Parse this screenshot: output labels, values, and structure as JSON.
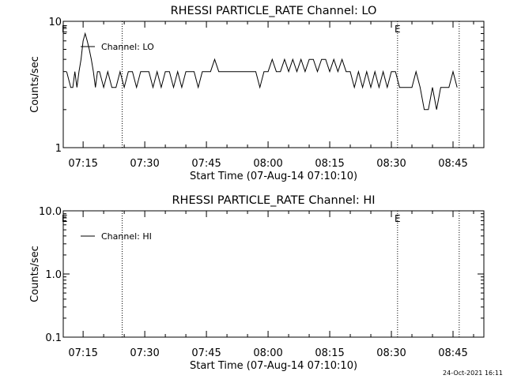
{
  "footer": {
    "timestamp": "24-Oct-2021 16:11"
  },
  "chart_data": [
    {
      "type": "line",
      "title": "RHESSI PARTICLE_RATE Channel: LO",
      "xlabel": "Start Time (07-Aug-14 07:10:10)",
      "ylabel": "Counts/sec",
      "y_scale": "log",
      "xlim": [
        "07:10:10",
        "08:52:30"
      ],
      "ylim": [
        1,
        10
      ],
      "x_ticks": [
        "07:15",
        "07:30",
        "07:45",
        "08:00",
        "08:15",
        "08:30",
        "08:45"
      ],
      "y_ticks": [
        "1",
        "10"
      ],
      "legend": "top-left",
      "markers": [
        {
          "time": "07:10:30",
          "label": "E"
        },
        {
          "time": "08:31:30",
          "label": "E"
        }
      ],
      "dotted_lines": [
        "07:24:30",
        "08:31:30",
        "08:46:30"
      ],
      "series": [
        {
          "name": "Channel: LO",
          "x": [
            "07:11:00",
            "07:12:00",
            "07:12:30",
            "07:13:00",
            "07:13:30",
            "07:14:00",
            "07:14:30",
            "07:15:00",
            "07:15:30",
            "07:16:00",
            "07:16:30",
            "07:17:00",
            "07:17:30",
            "07:18:00",
            "07:18:30",
            "07:19:00",
            "07:20:00",
            "07:21:00",
            "07:22:00",
            "07:23:00",
            "07:24:00",
            "07:25:00",
            "07:26:00",
            "07:27:00",
            "07:28:00",
            "07:29:00",
            "07:30:00",
            "07:31:00",
            "07:32:00",
            "07:33:00",
            "07:34:00",
            "07:35:00",
            "07:36:00",
            "07:37:00",
            "07:38:00",
            "07:39:00",
            "07:40:00",
            "07:41:00",
            "07:42:00",
            "07:43:00",
            "07:44:00",
            "07:45:00",
            "07:46:00",
            "07:47:00",
            "07:48:00",
            "07:49:00",
            "07:50:00",
            "07:51:00",
            "07:52:00",
            "07:53:00",
            "07:54:00",
            "07:55:00",
            "07:56:00",
            "07:57:00",
            "07:58:00",
            "07:59:00",
            "08:00:00",
            "08:01:00",
            "08:02:00",
            "08:03:00",
            "08:04:00",
            "08:05:00",
            "08:06:00",
            "08:07:00",
            "08:08:00",
            "08:09:00",
            "08:10:00",
            "08:11:00",
            "08:12:00",
            "08:13:00",
            "08:14:00",
            "08:15:00",
            "08:16:00",
            "08:17:00",
            "08:18:00",
            "08:19:00",
            "08:20:00",
            "08:21:00",
            "08:22:00",
            "08:23:00",
            "08:24:00",
            "08:25:00",
            "08:26:00",
            "08:27:00",
            "08:28:00",
            "08:29:00",
            "08:30:00",
            "08:31:00",
            "08:32:00",
            "08:33:00",
            "08:34:00",
            "08:35:00",
            "08:36:00",
            "08:37:00",
            "08:38:00",
            "08:39:00",
            "08:40:00",
            "08:41:00",
            "08:42:00",
            "08:43:00",
            "08:44:00",
            "08:45:00",
            "08:46:00"
          ],
          "values": [
            4,
            3,
            3,
            4,
            3,
            4,
            5,
            7,
            8,
            7,
            6,
            5,
            4,
            3,
            4,
            4,
            3,
            4,
            3,
            3,
            4,
            3,
            4,
            4,
            3,
            4,
            4,
            4,
            3,
            4,
            3,
            4,
            4,
            3,
            4,
            3,
            4,
            4,
            4,
            3,
            4,
            4,
            4,
            5,
            4,
            4,
            4,
            4,
            4,
            4,
            4,
            4,
            4,
            4,
            3,
            4,
            4,
            5,
            4,
            4,
            5,
            4,
            5,
            4,
            5,
            4,
            5,
            5,
            4,
            5,
            5,
            4,
            5,
            4,
            5,
            4,
            4,
            3,
            4,
            3,
            4,
            3,
            4,
            3,
            4,
            3,
            4,
            4,
            3,
            3,
            3,
            3,
            4,
            3,
            2,
            2,
            3,
            2,
            3,
            3,
            3,
            4,
            3
          ]
        }
      ]
    },
    {
      "type": "line",
      "title": "RHESSI PARTICLE_RATE Channel: HI",
      "xlabel": "Start Time (07-Aug-14 07:10:10)",
      "ylabel": "Counts/sec",
      "y_scale": "log",
      "xlim": [
        "07:10:10",
        "08:52:30"
      ],
      "ylim": [
        0.1,
        10
      ],
      "x_ticks": [
        "07:15",
        "07:30",
        "07:45",
        "08:00",
        "08:15",
        "08:30",
        "08:45"
      ],
      "y_ticks": [
        "0.1",
        "1.0",
        "10.0"
      ],
      "legend": "top-left",
      "markers": [
        {
          "time": "07:10:30",
          "label": "E"
        },
        {
          "time": "08:31:30",
          "label": "E"
        }
      ],
      "dotted_lines": [
        "07:24:30",
        "08:31:30",
        "08:46:30"
      ],
      "series": [
        {
          "name": "Channel: HI",
          "x": [],
          "values": []
        }
      ]
    }
  ]
}
